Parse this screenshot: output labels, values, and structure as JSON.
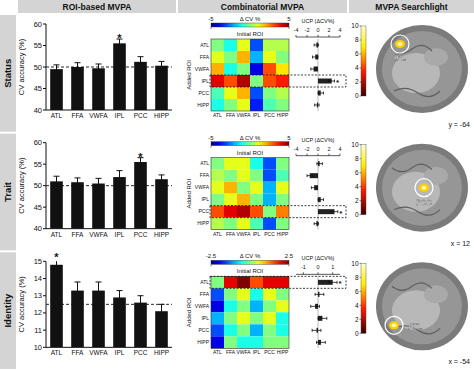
{
  "panel_titles": [
    "ROI-based MVPA",
    "Combinatorial MVPA",
    "MVPA Searchlight"
  ],
  "row_labels": [
    "Status",
    "Trait",
    "Identity"
  ],
  "chart_data": [
    {
      "type": "bar",
      "ylabel": "CV accuracy (%)",
      "categories": [
        "ATL",
        "FFA",
        "VWFA",
        "IPL",
        "PCC",
        "HIPP"
      ],
      "values": [
        49.5,
        50.0,
        49.7,
        55.5,
        51.2,
        50.3
      ],
      "errors": [
        1.0,
        1.0,
        1.0,
        1.0,
        1.2,
        1.0
      ],
      "color": "#111111",
      "ylim": [
        40,
        60
      ],
      "yticks": [
        40,
        45,
        50,
        55,
        60
      ],
      "chance": 50,
      "annotations": [
        {
          "text": "*",
          "index": 3
        }
      ]
    },
    {
      "type": "heatmap",
      "title": "Δ CV %",
      "xlabel": "Initial ROI",
      "ylabel": "Added ROI",
      "categories": [
        "ATL",
        "FFA",
        "VWFA",
        "IPL",
        "PCC",
        "HIPP"
      ],
      "cells": [
        [
          0,
          -1,
          1,
          -3,
          0.5,
          0.5
        ],
        [
          1,
          0,
          2,
          -2,
          1,
          0
        ],
        [
          2,
          -1,
          0,
          -4,
          3,
          1.5
        ],
        [
          4,
          3,
          4.5,
          0,
          3,
          3.5
        ],
        [
          -0.5,
          1,
          2,
          -3,
          0,
          0.5
        ],
        [
          -1,
          0,
          1,
          -3.5,
          -0.5,
          0
        ]
      ],
      "colorbar_range": [
        -5,
        5
      ],
      "colorbar_ticks": [
        -5,
        5
      ]
    },
    {
      "type": "bar",
      "orientation": "horizontal",
      "xlabel": "UCP (ΔCV%)",
      "values": [
        -0.3,
        -0.5,
        -0.8,
        2.5,
        0.5,
        -0.2
      ],
      "errors": [
        0.4,
        0.5,
        0.5,
        0.5,
        0.5,
        0.4
      ],
      "color": "#222222",
      "xlim": [
        -4,
        4
      ],
      "xticks": [
        -4,
        -2,
        0,
        2,
        4
      ],
      "annotations": [
        {
          "text": "*",
          "index": 3
        }
      ]
    },
    {
      "type": "image",
      "label": "IPL",
      "coordinate": "y = -64",
      "colorbar_range": [
        0,
        10
      ],
      "colorbar_ticks": [
        0,
        2,
        4,
        6,
        8,
        10
      ]
    },
    {
      "type": "bar",
      "ylabel": "CV accuracy (%)",
      "categories": [
        "ATL",
        "FFA",
        "VWFA",
        "IPL",
        "PCC",
        "HIPP"
      ],
      "values": [
        51.0,
        50.8,
        50.5,
        52.0,
        55.5,
        51.5
      ],
      "errors": [
        1.2,
        1.0,
        1.2,
        1.5,
        1.0,
        1.0
      ],
      "color": "#111111",
      "ylim": [
        40,
        60
      ],
      "yticks": [
        40,
        45,
        50,
        55,
        60
      ],
      "chance": 50,
      "annotations": [
        {
          "text": "*",
          "index": 4
        }
      ]
    },
    {
      "type": "heatmap",
      "title": "Δ CV %",
      "xlabel": "Initial ROI",
      "ylabel": "Added ROI",
      "categories": [
        "ATL",
        "FFA",
        "VWFA",
        "IPL",
        "PCC",
        "HIPP"
      ],
      "cells": [
        [
          0,
          1,
          1,
          -1,
          -3,
          0
        ],
        [
          0.5,
          0,
          1,
          0,
          -3,
          -0.5
        ],
        [
          1,
          2,
          0,
          1,
          -2,
          1
        ],
        [
          0,
          1,
          2,
          0,
          -2,
          0
        ],
        [
          3,
          4,
          4.5,
          3,
          0,
          2.5
        ],
        [
          0.5,
          0,
          1,
          -0.5,
          -3,
          0
        ]
      ],
      "colorbar_range": [
        -5,
        5
      ],
      "colorbar_ticks": [
        -5,
        5
      ]
    },
    {
      "type": "bar",
      "orientation": "horizontal",
      "xlabel": "UCP (ΔCV%)",
      "values": [
        0.3,
        -1.5,
        -0.7,
        0.5,
        3.0,
        -0.3
      ],
      "errors": [
        0.5,
        0.5,
        0.5,
        0.5,
        0.6,
        0.4
      ],
      "color": "#222222",
      "xlim": [
        -4,
        4
      ],
      "xticks": [
        -4,
        -2,
        0,
        2,
        4
      ],
      "annotations": [
        {
          "text": "*",
          "index": 4
        }
      ]
    },
    {
      "type": "image",
      "label": "PCC",
      "coordinate": "x = 12",
      "colorbar_range": [
        0,
        10
      ],
      "colorbar_ticks": [
        0,
        2,
        4,
        6,
        8,
        10
      ]
    },
    {
      "type": "bar",
      "ylabel": "CV accuracy (%)",
      "categories": [
        "ATL",
        "FFA",
        "VWFA",
        "IPL",
        "PCC",
        "HIPP"
      ],
      "values": [
        14.8,
        13.3,
        13.3,
        12.9,
        12.6,
        12.1
      ],
      "errors": [
        0.4,
        0.5,
        0.5,
        0.4,
        0.4,
        0.4
      ],
      "color": "#111111",
      "ylim": [
        10,
        15
      ],
      "yticks": [
        10,
        11,
        12,
        13,
        14,
        15
      ],
      "chance": 12.5,
      "annotations": [
        {
          "text": "*",
          "index": 0
        }
      ]
    },
    {
      "type": "heatmap",
      "title": "Δ CV %",
      "xlabel": "Initial ROI",
      "ylabel": "Added ROI",
      "categories": [
        "ATL",
        "FFA",
        "VWFA",
        "IPL",
        "PCC",
        "HIPP"
      ],
      "cells": [
        [
          0,
          2,
          2.5,
          1.5,
          2,
          2
        ],
        [
          -1.5,
          0,
          0.5,
          -0.5,
          0.5,
          0
        ],
        [
          -2,
          -0.5,
          0,
          -1,
          0,
          0.5
        ],
        [
          -1,
          0,
          0.5,
          0,
          0.5,
          -0.5
        ],
        [
          -1.5,
          -0.5,
          0,
          -1,
          0,
          -0.5
        ],
        [
          -2,
          0,
          -0.5,
          -0.5,
          0,
          0
        ]
      ],
      "colorbar_range": [
        -2.5,
        2.5
      ],
      "colorbar_ticks": [
        -2.5,
        2.5
      ]
    },
    {
      "type": "bar",
      "orientation": "horizontal",
      "xlabel": "UCP (ΔCV%)",
      "values": [
        1.0,
        0.1,
        -0.2,
        0.3,
        -0.1,
        0.2
      ],
      "errors": [
        0.3,
        0.3,
        0.3,
        0.3,
        0.3,
        0.3
      ],
      "color": "#222222",
      "xlim": [
        -1.5,
        1.5
      ],
      "xticks": [
        -1,
        0,
        1
      ],
      "annotations": [
        {
          "text": "*",
          "index": 0
        }
      ]
    },
    {
      "type": "image",
      "label": "ATL",
      "coordinate": "x = -54",
      "colorbar_range": [
        0,
        10
      ],
      "colorbar_ticks": [
        0,
        2,
        4,
        6,
        8,
        10
      ]
    }
  ]
}
